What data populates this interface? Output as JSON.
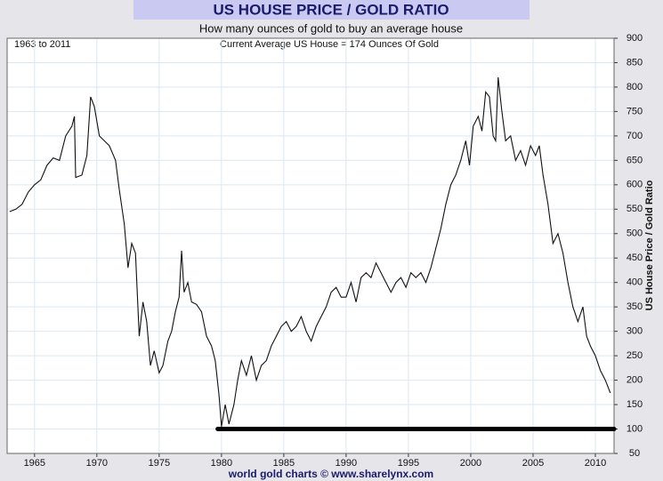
{
  "chart_data": {
    "type": "line",
    "title": "US HOUSE PRICE / GOLD RATIO",
    "subtitle": "How many ounces of gold to buy an average house",
    "annotations": [
      "1963 to 2011",
      "Current Average US House = 174 Ounces Of Gold"
    ],
    "y_label": "US House Price / Gold Ratio",
    "footer": "world gold charts © www.sharelynx.com",
    "xlim": [
      1962.8,
      2011.5
    ],
    "xticks": [
      1965,
      1970,
      1975,
      1980,
      1985,
      1990,
      1995,
      2000,
      2005,
      2010
    ],
    "ylim": [
      50,
      900
    ],
    "yticks": [
      50,
      100,
      150,
      200,
      250,
      300,
      350,
      400,
      450,
      500,
      550,
      600,
      650,
      700,
      750,
      800,
      850,
      900
    ],
    "grid": true,
    "reference_line": {
      "value": 100,
      "x": [
        1979.7,
        2011.5
      ],
      "color": "#000000"
    },
    "series": [
      {
        "name": "US House Price / Gold Ratio",
        "color": "#111111",
        "x": [
          1963.0,
          1963.5,
          1964,
          1964.5,
          1965,
          1965.5,
          1966,
          1966.5,
          1967,
          1967.5,
          1968,
          1968.2,
          1968.3,
          1968.8,
          1969.2,
          1969.5,
          1969.8,
          1970.2,
          1970.6,
          1971,
          1971.5,
          1971.8,
          1972.2,
          1972.5,
          1972.8,
          1973.1,
          1973.4,
          1973.7,
          1974.0,
          1974.3,
          1974.6,
          1975.0,
          1975.3,
          1975.7,
          1976.0,
          1976.3,
          1976.6,
          1976.8,
          1977.0,
          1977.3,
          1977.6,
          1978.0,
          1978.4,
          1978.8,
          1979.2,
          1979.5,
          1979.8,
          1980.0,
          1980.3,
          1980.6,
          1981.0,
          1981.3,
          1981.6,
          1982.0,
          1982.4,
          1982.8,
          1983.2,
          1983.6,
          1984.0,
          1984.4,
          1984.8,
          1985.2,
          1985.6,
          1986.0,
          1986.4,
          1986.8,
          1987.2,
          1987.6,
          1988.0,
          1988.4,
          1988.8,
          1989.2,
          1989.6,
          1990.0,
          1990.4,
          1990.8,
          1991.2,
          1991.6,
          1992.0,
          1992.4,
          1992.8,
          1993.2,
          1993.6,
          1994.0,
          1994.4,
          1994.8,
          1995.2,
          1995.6,
          1996.0,
          1996.4,
          1996.8,
          1997.2,
          1997.6,
          1998.0,
          1998.4,
          1998.8,
          1999.2,
          1999.6,
          1999.9,
          2000.2,
          2000.6,
          2000.9,
          2001.2,
          2001.5,
          2001.8,
          2002.0,
          2002.2,
          2002.5,
          2002.8,
          2003.2,
          2003.6,
          2004.0,
          2004.4,
          2004.8,
          2005.2,
          2005.5,
          2005.8,
          2006.2,
          2006.6,
          2007.0,
          2007.4,
          2007.8,
          2008.2,
          2008.6,
          2009.0,
          2009.3,
          2009.6,
          2010.0,
          2010.4,
          2010.8,
          2011.2
        ],
        "values": [
          545,
          550,
          560,
          585,
          600,
          610,
          640,
          655,
          650,
          700,
          720,
          740,
          615,
          620,
          660,
          780,
          760,
          700,
          690,
          680,
          650,
          590,
          520,
          430,
          480,
          460,
          290,
          360,
          320,
          230,
          260,
          215,
          230,
          280,
          300,
          340,
          370,
          465,
          380,
          400,
          360,
          355,
          340,
          290,
          270,
          240,
          170,
          105,
          150,
          110,
          150,
          200,
          240,
          210,
          250,
          200,
          230,
          240,
          270,
          290,
          310,
          320,
          300,
          310,
          330,
          300,
          280,
          310,
          330,
          350,
          380,
          390,
          370,
          370,
          400,
          360,
          410,
          420,
          410,
          440,
          420,
          400,
          380,
          400,
          410,
          390,
          420,
          410,
          420,
          400,
          430,
          470,
          510,
          560,
          600,
          620,
          650,
          690,
          640,
          720,
          740,
          710,
          790,
          780,
          700,
          690,
          820,
          750,
          690,
          700,
          650,
          670,
          640,
          680,
          660,
          680,
          620,
          560,
          480,
          500,
          460,
          400,
          350,
          320,
          350,
          290,
          270,
          250,
          220,
          200,
          174
        ]
      }
    ]
  }
}
